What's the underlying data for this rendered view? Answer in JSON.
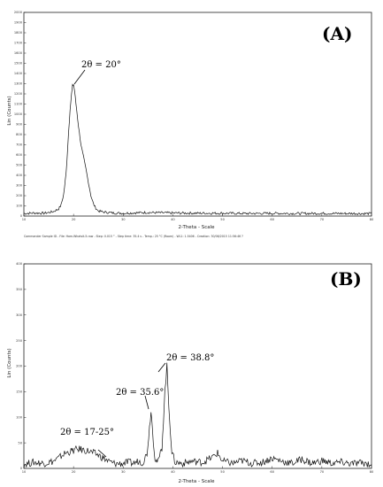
{
  "chart_data": [
    {
      "type": "line",
      "panel_label": "(A)",
      "xlabel": "2-Theta - Scale",
      "ylabel": "Lin (Counts)",
      "xlim": [
        10,
        80
      ],
      "ylim": [
        0,
        2000
      ],
      "xticks": [
        10,
        20,
        30,
        40,
        50,
        60,
        70,
        80
      ],
      "yticks": [
        0,
        100,
        200,
        300,
        400,
        500,
        600,
        700,
        800,
        900,
        1000,
        1100,
        1200,
        1300,
        1400,
        1500,
        1600,
        1700,
        1800,
        1900,
        2000
      ],
      "caption": "Commander Sample ID - File: Ham-Whatsit-5.raw - Step: 0.015 ° - Step time: 35.4 s - Temp.: 25 °C (Room) - WL1: 1.5406 - Creation: 30/06/2015 11:56:46 ?",
      "annotations": [
        {
          "text": "2θ = 20°",
          "x": 20,
          "y": 1350
        }
      ],
      "series": [
        {
          "x": [
            10,
            12,
            14,
            15,
            16,
            17,
            17.5,
            18,
            18.5,
            19,
            19.3,
            19.6,
            19.8,
            20,
            20.2,
            20.5,
            21,
            21.5,
            22,
            22.5,
            23,
            23.5,
            24,
            24.5,
            25,
            26,
            27,
            28,
            30,
            35,
            40,
            45,
            50,
            55,
            60,
            65,
            70,
            75,
            80
          ],
          "y": [
            25,
            30,
            28,
            35,
            45,
            70,
            110,
            210,
            420,
            820,
            1050,
            1200,
            1280,
            1290,
            1230,
            1100,
            880,
            700,
            580,
            460,
            330,
            200,
            120,
            75,
            50,
            40,
            35,
            30,
            28,
            35,
            30,
            28,
            28,
            25,
            27,
            25,
            26,
            25,
            24
          ]
        }
      ]
    },
    {
      "type": "line",
      "panel_label": "(B)",
      "xlabel": "2-Theta - Scale",
      "ylabel": "Lin (Counts)",
      "xlim": [
        10,
        80
      ],
      "ylim": [
        0,
        400
      ],
      "xticks": [
        10,
        20,
        30,
        40,
        50,
        60,
        70,
        80
      ],
      "yticks": [
        0,
        50,
        100,
        150,
        200,
        250,
        300,
        350,
        400
      ],
      "annotations": [
        {
          "text": "2θ = 17-25°",
          "x": 21,
          "y": 40
        },
        {
          "text": "2θ = 35.6°",
          "x": 35.6,
          "y": 125
        },
        {
          "text": "2θ = 38.8°",
          "x": 38.8,
          "y": 205
        }
      ],
      "series": [
        {
          "x": [
            10,
            12,
            14,
            16,
            17,
            18,
            19,
            20,
            21,
            22,
            23,
            24,
            25,
            26,
            27,
            28,
            29,
            30,
            31,
            32,
            33,
            34,
            34.8,
            35.3,
            35.6,
            35.9,
            36.4,
            37,
            37.8,
            38.4,
            38.8,
            39.2,
            39.8,
            40.5,
            42,
            44,
            46,
            48,
            49,
            50,
            52,
            54,
            56,
            58,
            60,
            62,
            64,
            66,
            68,
            70,
            72,
            74,
            76,
            78,
            80
          ],
          "y": [
            8,
            12,
            10,
            14,
            20,
            28,
            32,
            35,
            38,
            36,
            34,
            30,
            26,
            20,
            14,
            10,
            9,
            10,
            12,
            10,
            14,
            12,
            30,
            80,
            115,
            75,
            20,
            12,
            40,
            150,
            200,
            120,
            30,
            12,
            10,
            14,
            12,
            22,
            30,
            14,
            10,
            15,
            10,
            12,
            20,
            14,
            10,
            18,
            10,
            15,
            10,
            12,
            9,
            11,
            8
          ]
        }
      ]
    }
  ]
}
